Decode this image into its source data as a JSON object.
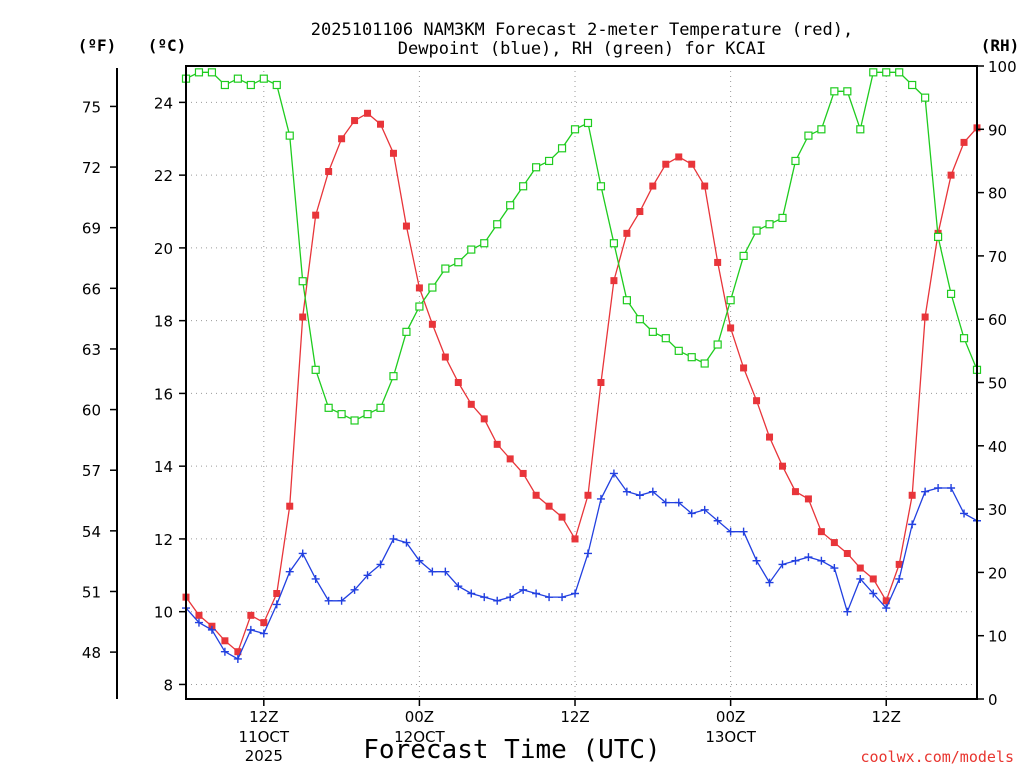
{
  "title_line1": "2025101106 NAM3KM Forecast 2-meter Temperature (red),",
  "title_line2": "Dewpoint (blue), RH (green) for KCAI",
  "unit_f": "(ºF)",
  "unit_c": "(ºC)",
  "unit_rh": "(RH)",
  "xlabel": "Forecast Time (UTC)",
  "credit": "coolwx.com/models",
  "colors": {
    "temperature": "#e8353a",
    "dewpoint": "#2240e0",
    "rh": "#1fcc1f",
    "credit": "#e8352f"
  },
  "chart_data": {
    "type": "line",
    "station": "KCAI",
    "model": "NAM3KM",
    "init": "2025101106",
    "x_unit": "forecast hour",
    "x": [
      0,
      1,
      2,
      3,
      4,
      5,
      6,
      7,
      8,
      9,
      10,
      11,
      12,
      13,
      14,
      15,
      16,
      17,
      18,
      19,
      20,
      21,
      22,
      23,
      24,
      25,
      26,
      27,
      28,
      29,
      30,
      31,
      32,
      33,
      34,
      35,
      36,
      37,
      38,
      39,
      40,
      41,
      42,
      43,
      44,
      45,
      46,
      47,
      48,
      49,
      50,
      51,
      52,
      53,
      54,
      55,
      56,
      57,
      58,
      59,
      60,
      61
    ],
    "xlim": [
      0,
      61
    ],
    "x_ticks": [
      {
        "hour": 6,
        "label": "12Z",
        "sub1": "11OCT",
        "sub2": "2025"
      },
      {
        "hour": 18,
        "label": "00Z",
        "sub1": "12OCT",
        "sub2": ""
      },
      {
        "hour": 30,
        "label": "12Z",
        "sub1": "",
        "sub2": ""
      },
      {
        "hour": 42,
        "label": "00Z",
        "sub1": "13OCT",
        "sub2": ""
      },
      {
        "hour": 54,
        "label": "12Z",
        "sub1": "",
        "sub2": ""
      }
    ],
    "ylim_c": [
      7.6,
      25.0
    ],
    "yticks_c": [
      "8",
      "10",
      "12",
      "14",
      "16",
      "18",
      "20",
      "22",
      "24"
    ],
    "yticks_f": [
      "48",
      "51",
      "54",
      "57",
      "60",
      "63",
      "66",
      "69",
      "72",
      "75"
    ],
    "ylim_rh": [
      0,
      100
    ],
    "yticks_rh": [
      "0",
      "10",
      "20",
      "30",
      "40",
      "50",
      "60",
      "70",
      "80",
      "90",
      "100"
    ],
    "grid": true,
    "series": [
      {
        "name": "Temperature",
        "units": "°C",
        "color": "#e8353a",
        "marker": "filled-square",
        "values": [
          10.4,
          9.9,
          9.6,
          9.2,
          8.9,
          9.9,
          9.7,
          10.5,
          12.9,
          18.1,
          20.9,
          22.1,
          23.0,
          23.5,
          23.7,
          23.4,
          22.6,
          20.6,
          18.9,
          17.9,
          17.0,
          16.3,
          15.7,
          15.3,
          14.6,
          14.2,
          13.8,
          13.2,
          12.9,
          12.6,
          12.0,
          13.2,
          16.3,
          19.1,
          20.4,
          21.0,
          21.7,
          22.3,
          22.5,
          22.3,
          21.7,
          19.6,
          17.8,
          16.7,
          15.8,
          14.8,
          14.0,
          13.3,
          13.1,
          12.2,
          11.9,
          11.6,
          11.2,
          10.9,
          10.3,
          11.3,
          13.2,
          18.1,
          20.4,
          22.0,
          22.9,
          23.3
        ]
      },
      {
        "name": "Dewpoint",
        "units": "°C",
        "color": "#2240e0",
        "marker": "plus",
        "values": [
          10.1,
          9.7,
          9.5,
          8.9,
          8.7,
          9.5,
          9.4,
          10.2,
          11.1,
          11.6,
          10.9,
          10.3,
          10.3,
          10.6,
          11.0,
          11.3,
          12.0,
          11.9,
          11.4,
          11.1,
          11.1,
          10.7,
          10.5,
          10.4,
          10.3,
          10.4,
          10.6,
          10.5,
          10.4,
          10.4,
          10.5,
          11.6,
          13.1,
          13.8,
          13.3,
          13.2,
          13.3,
          13.0,
          13.0,
          12.7,
          12.8,
          12.5,
          12.2,
          12.2,
          11.4,
          10.8,
          11.3,
          11.4,
          11.5,
          11.4,
          11.2,
          10.0,
          10.9,
          10.5,
          10.1,
          10.9,
          12.4,
          13.3,
          13.4,
          13.4,
          12.7,
          12.5
        ]
      },
      {
        "name": "RH",
        "units": "%",
        "color": "#1fcc1f",
        "marker": "open-square",
        "values": [
          98,
          99,
          99,
          97,
          98,
          97,
          98,
          97,
          89,
          66,
          52,
          46,
          45,
          44,
          45,
          46,
          51,
          58,
          62,
          65,
          68,
          69,
          71,
          72,
          75,
          78,
          81,
          84,
          85,
          87,
          90,
          91,
          81,
          72,
          63,
          60,
          58,
          57,
          55,
          54,
          53,
          56,
          63,
          70,
          74,
          75,
          76,
          85,
          89,
          90,
          96,
          96,
          90,
          99,
          99,
          99,
          97,
          95,
          73,
          64,
          57,
          52
        ]
      }
    ]
  }
}
